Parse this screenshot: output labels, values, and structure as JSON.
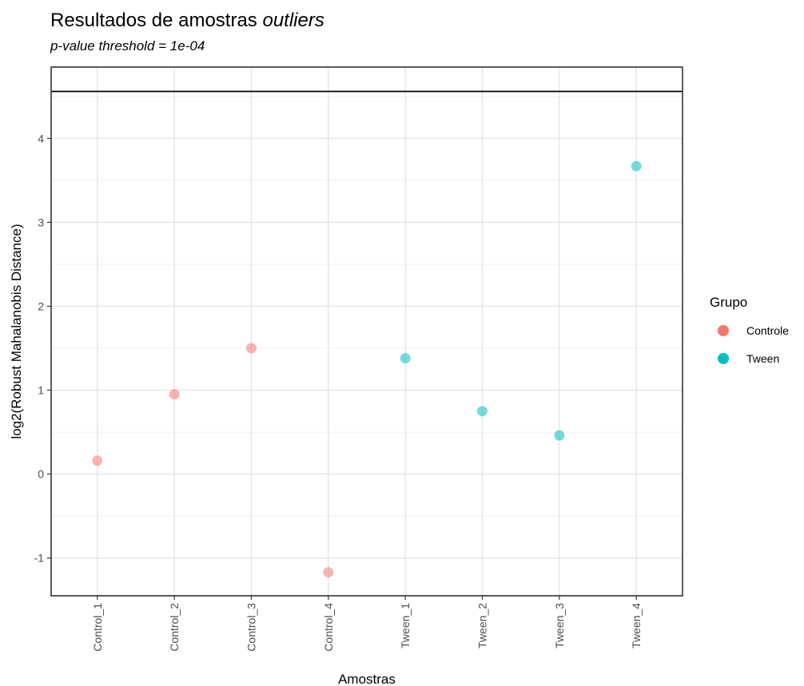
{
  "chart_data": {
    "type": "scatter",
    "title_prefix": "Resultados de amostras",
    "title_emph": "outliers",
    "subtitle": "p-value threshold =  1e-04",
    "xlabel": "Amostras",
    "ylabel": "log2(Robust Mahalanobis Distance)",
    "ylim": [
      -1.45,
      4.85
    ],
    "yticks": [
      -1,
      0,
      1,
      2,
      3,
      4
    ],
    "threshold_line": 4.56,
    "categories": [
      "Control_1",
      "Control_2",
      "Control_3",
      "Control_4",
      "Tween_1",
      "Tween_2",
      "Tween_3",
      "Tween_4"
    ],
    "series": [
      {
        "name": "Controle",
        "color": "#F8766D",
        "points": [
          {
            "x": "Control_1",
            "y": 0.16
          },
          {
            "x": "Control_2",
            "y": 0.95
          },
          {
            "x": "Control_3",
            "y": 1.5
          },
          {
            "x": "Control_4",
            "y": -1.17
          }
        ]
      },
      {
        "name": "Tween",
        "color": "#00BFC4",
        "points": [
          {
            "x": "Tween_1",
            "y": 1.38
          },
          {
            "x": "Tween_2",
            "y": 0.75
          },
          {
            "x": "Tween_3",
            "y": 0.46
          },
          {
            "x": "Tween_4",
            "y": 3.67
          }
        ]
      }
    ],
    "legend": {
      "title": "Grupo",
      "position": "right"
    },
    "grid": true
  }
}
